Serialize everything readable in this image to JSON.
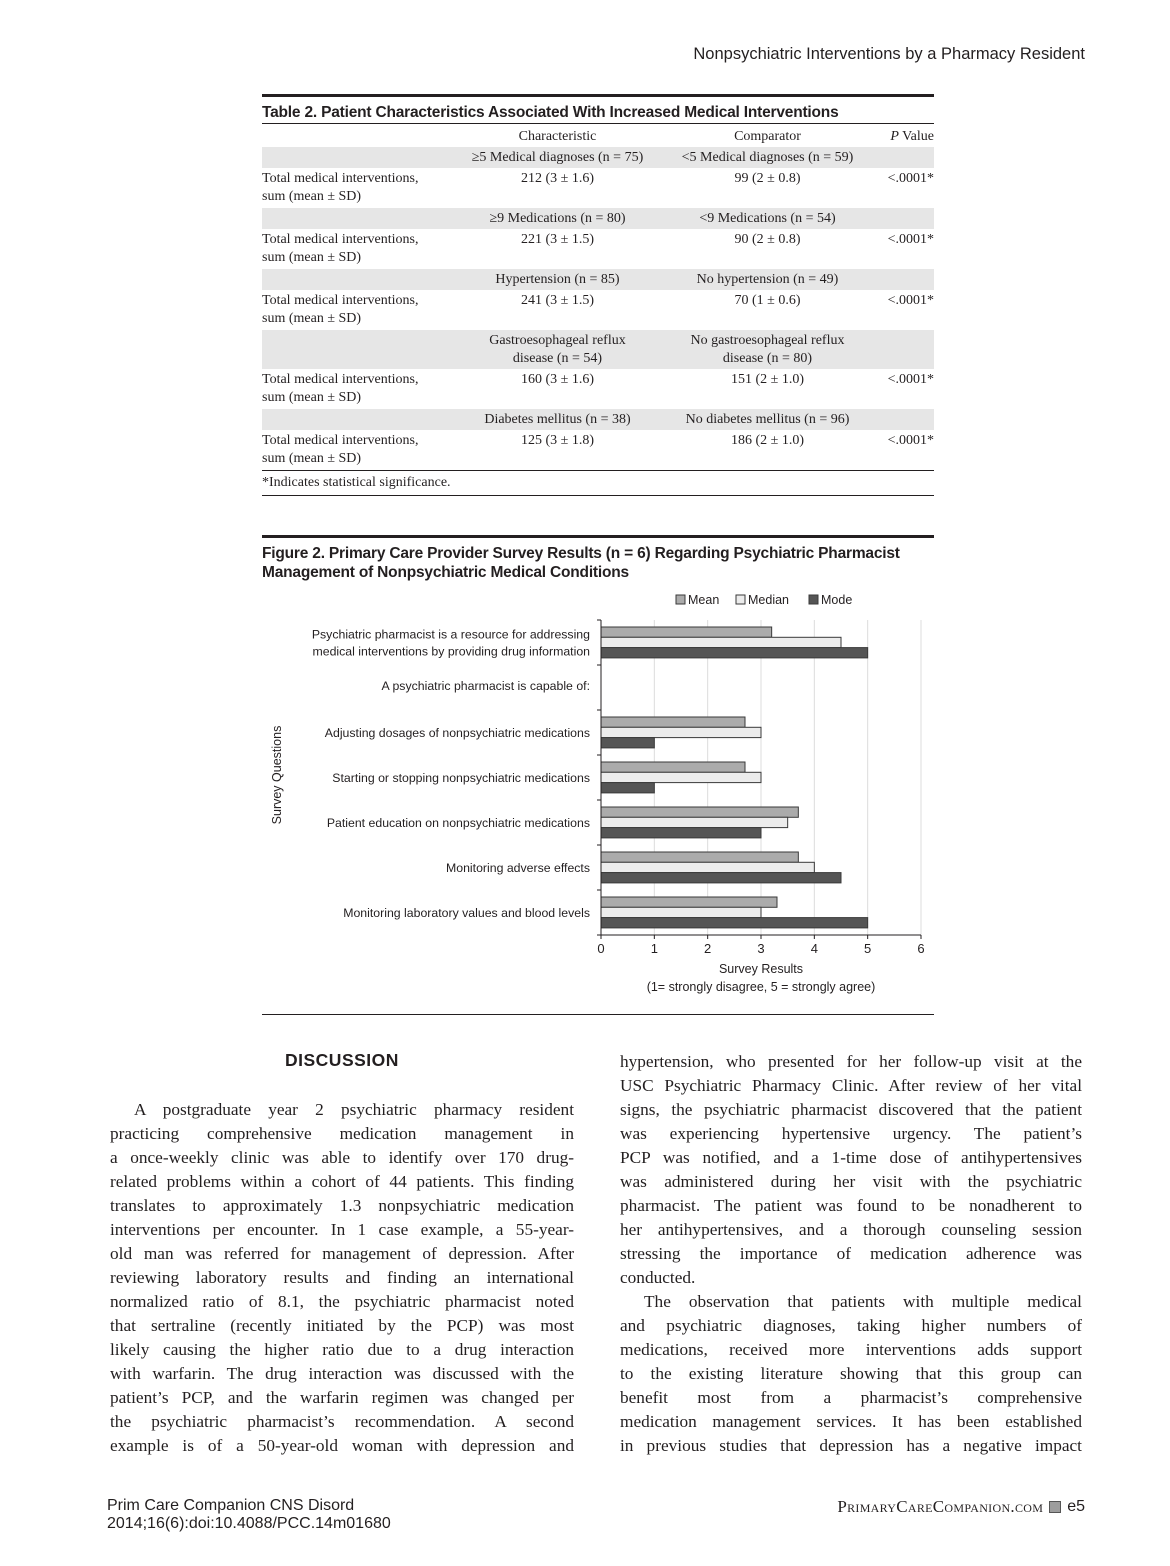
{
  "running_head": "Nonpsychiatric Interventions by a Pharmacy Resident",
  "table": {
    "title": "Table 2. Patient Characteristics Associated With Increased Medical Interventions",
    "headers": [
      "",
      "Characteristic",
      "Comparator",
      "P Value"
    ],
    "header_p_italic": "P",
    "header_p_rest": " Value",
    "groups": [
      {
        "characteristic": "≥5 Medical diagnoses (n = 75)",
        "comparator": "<5 Medical diagnoses (n = 59)",
        "row_label": "Total medical interventions, sum (mean ± SD)",
        "char_value": "212 (3 ± 1.6)",
        "comp_value": "99 (2 ± 0.8)",
        "p": "<.0001*"
      },
      {
        "characteristic": "≥9 Medications (n = 80)",
        "comparator": "<9 Medications (n = 54)",
        "row_label": "Total medical interventions, sum (mean ± SD)",
        "char_value": "221 (3 ± 1.5)",
        "comp_value": "90 (2 ± 0.8)",
        "p": "<.0001*"
      },
      {
        "characteristic": "Hypertension (n = 85)",
        "comparator": "No hypertension (n = 49)",
        "row_label": "Total medical interventions, sum (mean ± SD)",
        "char_value": "241 (3 ± 1.5)",
        "comp_value": "70 (1 ± 0.6)",
        "p": "<.0001*"
      },
      {
        "characteristic": "Gastroesophageal reflux disease (n = 54)",
        "comparator": "No gastroesophageal reflux disease (n = 80)",
        "row_label": "Total medical interventions, sum (mean ± SD)",
        "char_value": "160 (3 ± 1.6)",
        "comp_value": "151 (2 ± 1.0)",
        "p": "<.0001*"
      },
      {
        "characteristic": "Diabetes mellitus (n = 38)",
        "comparator": "No diabetes mellitus (n = 96)",
        "row_label": "Total medical interventions, sum (mean ± SD)",
        "char_value": "125 (3 ± 1.8)",
        "comp_value": "186 (2 ± 1.0)",
        "p": "<.0001*"
      }
    ],
    "footnote": "*Indicates statistical significance."
  },
  "figure": {
    "title_line1": "Figure 2. Primary Care Provider Survey Results (n = 6) Regarding Psychiatric Pharmacist",
    "title_line2": "Management of Nonpsychiatric Medical Conditions"
  },
  "chart_data": {
    "type": "bar",
    "orientation": "horizontal",
    "categories": [
      [
        "Psychiatric pharmacist is a resource for addressing",
        "medical interventions by providing drug information"
      ],
      [
        "A psychiatric pharmacist is capable of:"
      ],
      [
        "Adjusting dosages of nonpsychiatric medications"
      ],
      [
        "Starting or stopping nonpsychiatric medications"
      ],
      [
        "Patient education on nonpsychiatric medications"
      ],
      [
        "Monitoring adverse effects"
      ],
      [
        "Monitoring laboratory values and blood levels"
      ]
    ],
    "series": [
      {
        "name": "Mean",
        "color": "#ababab",
        "values": [
          3.2,
          null,
          2.7,
          2.7,
          3.7,
          3.7,
          3.3
        ]
      },
      {
        "name": "Median",
        "color": "#ececec",
        "values": [
          4.5,
          null,
          3,
          3,
          3.5,
          4,
          3
        ]
      },
      {
        "name": "Mode",
        "color": "#555555",
        "values": [
          5,
          null,
          1,
          1,
          3,
          4.5,
          5
        ]
      }
    ],
    "xlim": [
      0,
      6
    ],
    "xticks": [
      "0",
      "1",
      "2",
      "3",
      "4",
      "5",
      "6"
    ],
    "xlabel": "Survey Results",
    "xlabel_note": "(1= strongly disagree, 5 = strongly agree)",
    "ylabel": "Survey Questions",
    "grid": "vertical",
    "legend": "top"
  },
  "discussion": {
    "heading": "DISCUSSION",
    "left_lines": [
      "A postgraduate year 2 psychiatric pharmacy resident",
      "practicing comprehensive medication management in",
      "a once-weekly clinic was able to identify over 170 drug-",
      "related problems within a cohort of 44 patients. This finding",
      "translates to approximately 1.3 nonpsychiatric medication",
      "interventions per encounter. In 1 case example, a 55-year-",
      "old man was referred for management of depression. After",
      "reviewing laboratory results and finding an international",
      "normalized ratio of 8.1, the psychiatric pharmacist noted",
      "that sertraline (recently initiated by the PCP) was most",
      "likely causing the higher ratio due to a drug interaction",
      "with warfarin. The drug interaction was discussed with the",
      "patient’s PCP, and the warfarin regimen was changed per",
      "the psychiatric pharmacist’s recommendation. A second",
      "example is of a 50-year-old woman with depression and"
    ],
    "right_p1_lines": [
      "hypertension, who presented for her follow-up visit at the",
      "USC Psychiatric Pharmacy Clinic. After review of her vital",
      "signs, the psychiatric pharmacist discovered that the patient",
      "was experiencing hypertensive urgency. The patient’s",
      "PCP was notified, and a 1-time dose of antihypertensives",
      "was administered during her visit with the psychiatric",
      "pharmacist. The patient was found to be nonadherent to",
      "her antihypertensives, and a thorough counseling session",
      "stressing the importance of medication adherence was",
      "conducted."
    ],
    "right_p2_lines": [
      "The observation that patients with multiple medical",
      "and psychiatric diagnoses, taking higher numbers of",
      "medications, received more interventions adds support",
      "to the existing literature showing that this group can",
      "benefit most from a pharmacist’s comprehensive",
      "medication management services. It has been established",
      "in previous studies that depression has a negative impact"
    ]
  },
  "footer": {
    "journal": "Prim Care Companion CNS Disord",
    "citation": "2014;16(6):doi:10.4088/PCC.14m01680",
    "site": "PrimaryCareCompanion.com",
    "page": "e5"
  }
}
